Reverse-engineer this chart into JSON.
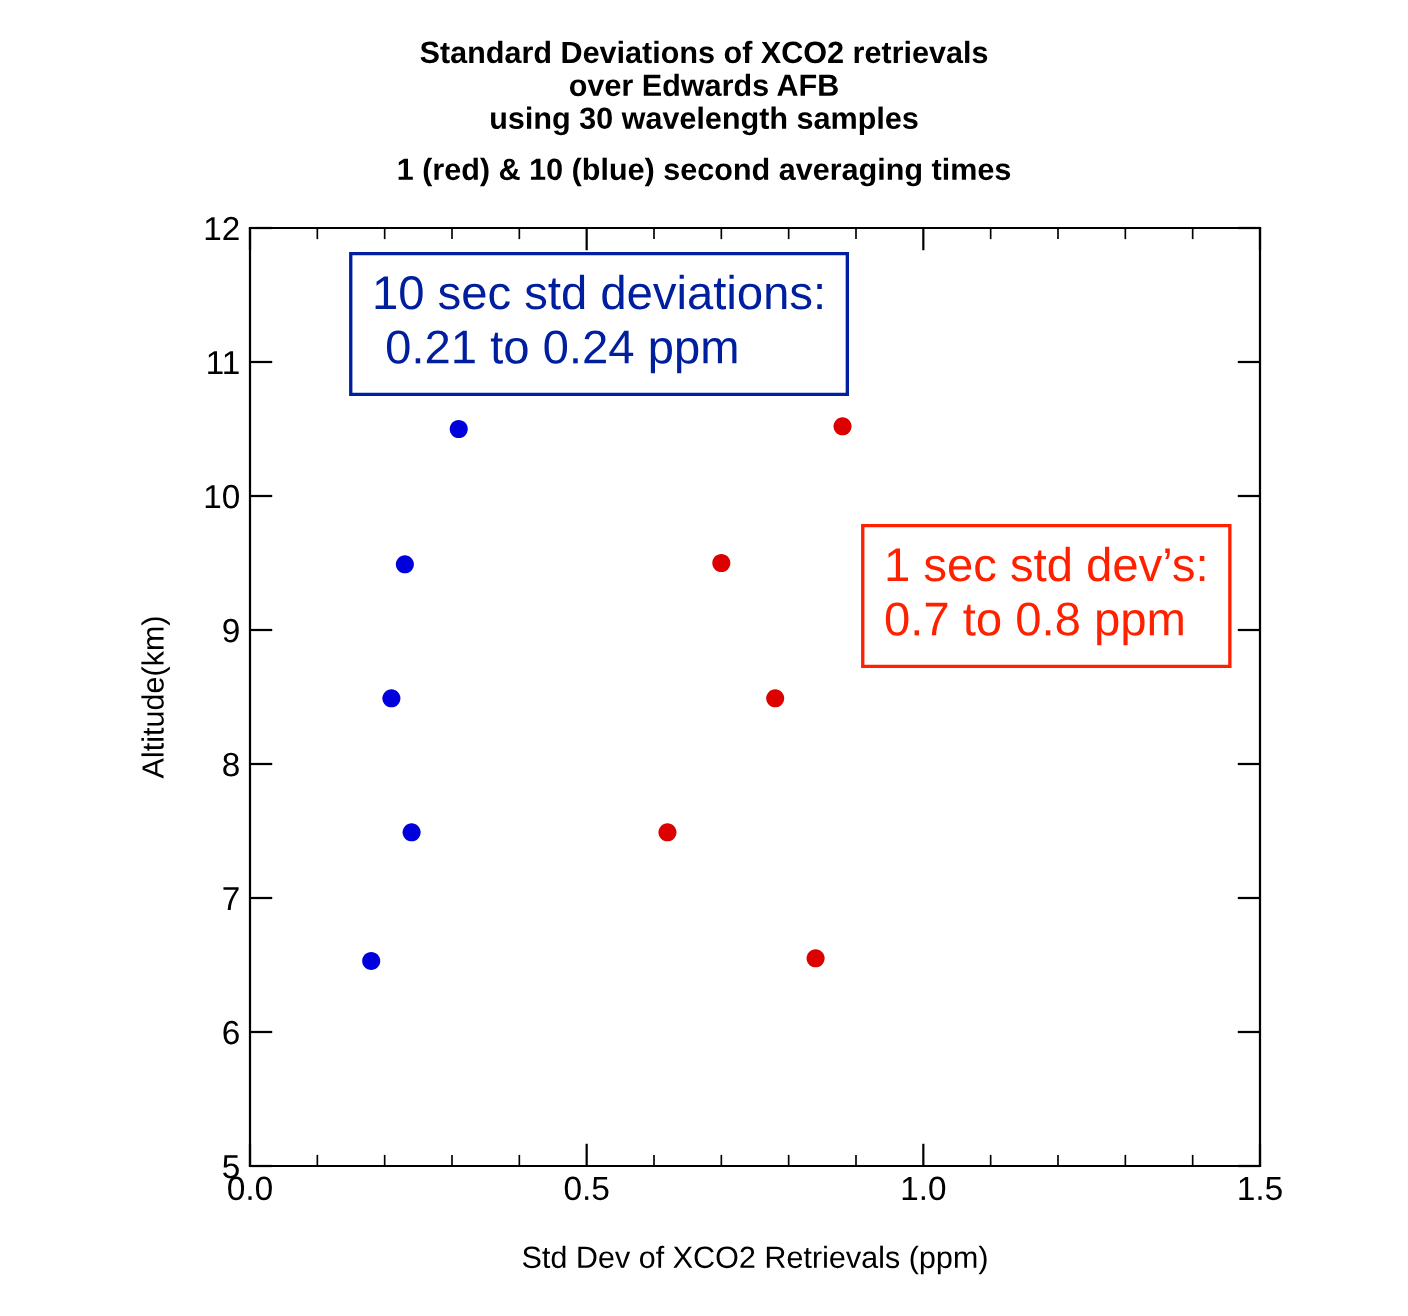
{
  "chart_data": {
    "type": "scatter",
    "title": "Standard Deviations of XCO2 retrievals\nover Edwards AFB\nusing 30 wavelength samples",
    "subtitle": "1 (red) & 10 (blue) second averaging times",
    "xlabel": "Std Dev of XCO2 Retrievals (ppm)",
    "ylabel": "Altitude(km)",
    "series": [
      {
        "color": "#0000dd",
        "x": [
          0.18,
          0.24,
          0.21,
          0.23,
          0.31
        ],
        "values": [
          6.53,
          7.49,
          8.49,
          9.49,
          10.5
        ]
      },
      {
        "color": "#dd0000",
        "x": [
          0.62,
          0.7,
          0.78,
          0.84,
          0.88
        ],
        "values": [
          7.49,
          9.5,
          8.49,
          6.55,
          10.52
        ]
      }
    ],
    "annotations": [
      "10 sec std deviations:\n 0.21 to 0.24 ppm",
      "1 sec std dev’s:\n0.7 to 0.8 ppm"
    ],
    "xlim": [
      0.0,
      1.5
    ],
    "xticks": [
      {
        "value": 0.0,
        "label": "0.0"
      },
      {
        "value": 0.5,
        "label": "0.5"
      },
      {
        "value": 1.0,
        "label": "1.0"
      },
      {
        "value": 1.5,
        "label": "1.5"
      }
    ],
    "ylim": [
      5,
      12
    ],
    "yticks": [
      5,
      6,
      7,
      8,
      9,
      10,
      11,
      12
    ],
    "marker": "circle",
    "grid": false,
    "legend": false
  }
}
